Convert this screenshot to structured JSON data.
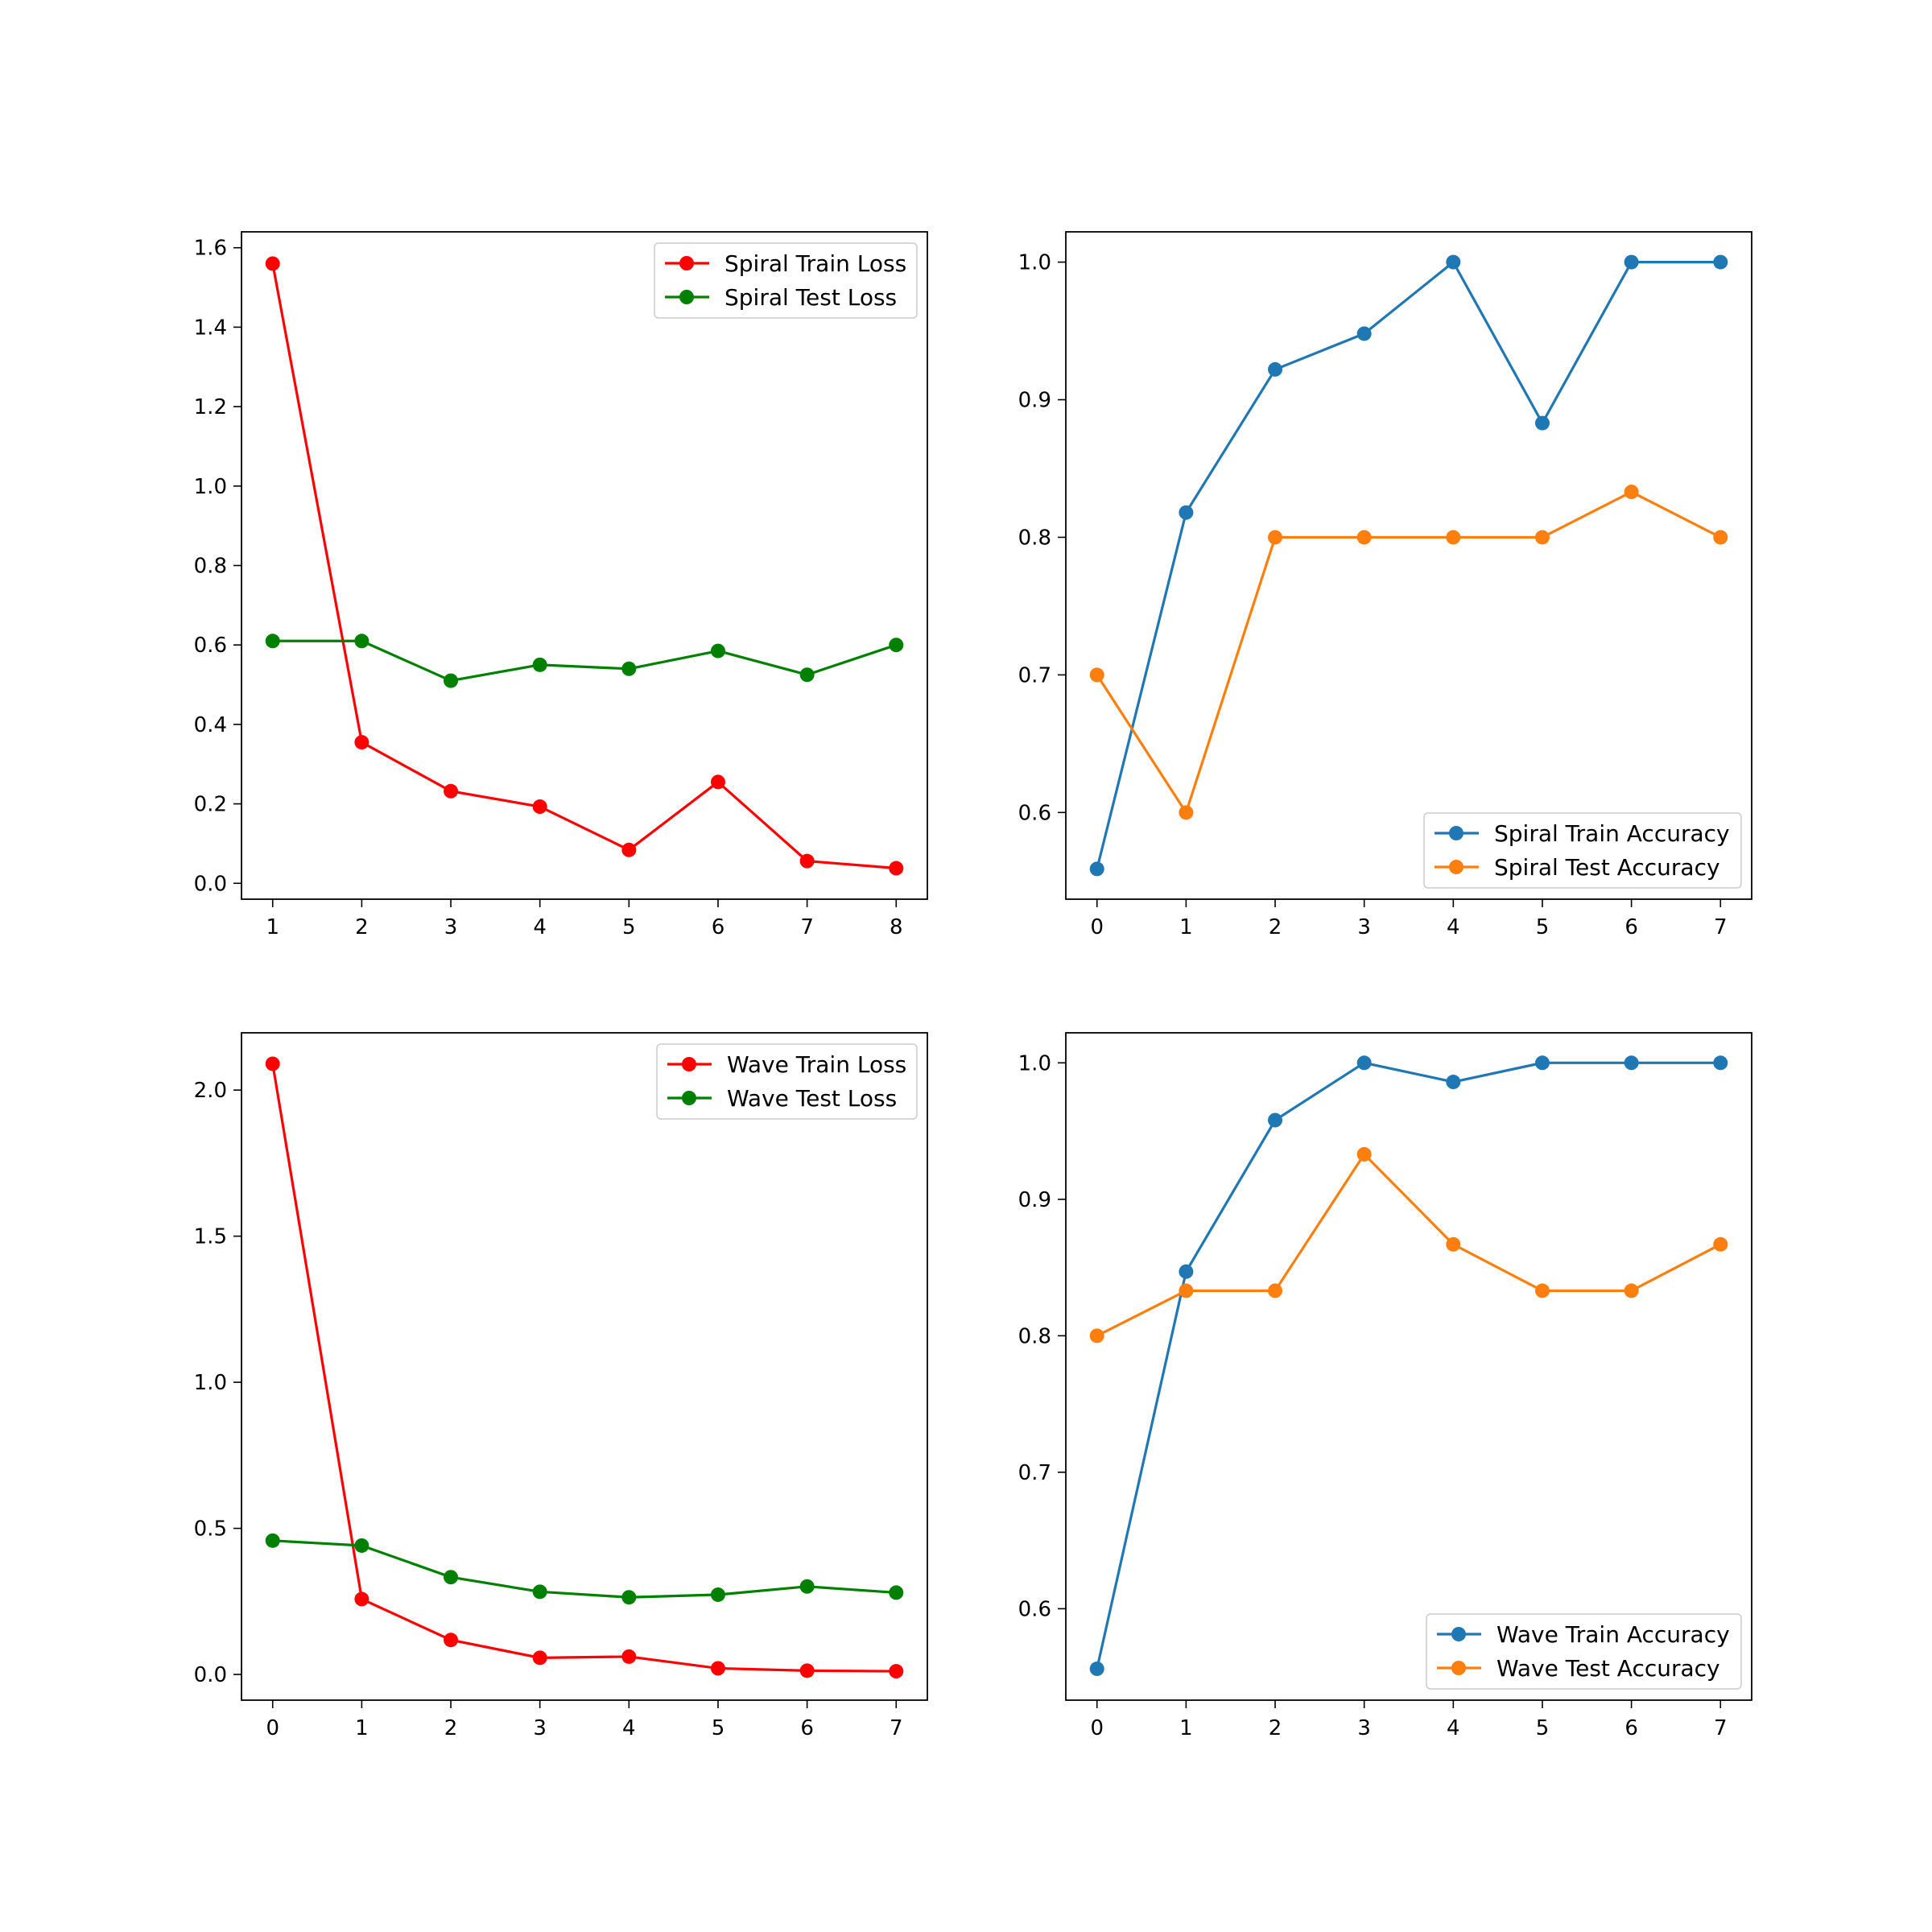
{
  "chart_data": [
    {
      "type": "line",
      "title": "",
      "xlabel": "",
      "ylabel": "",
      "xlim": [
        0.65,
        8.35
      ],
      "ylim": [
        -0.04,
        1.64
      ],
      "xticks": [
        1,
        2,
        3,
        4,
        5,
        6,
        7,
        8
      ],
      "yticks": [
        0.0,
        0.2,
        0.4,
        0.6,
        0.8,
        1.0,
        1.2,
        1.4,
        1.6
      ],
      "ytick_decimals": 1,
      "grid": false,
      "legend_position": "upper right",
      "series": [
        {
          "name": "Spiral Train Loss",
          "color": "#ff0000",
          "marker": "circle",
          "x": [
            1,
            2,
            3,
            4,
            5,
            6,
            7,
            8
          ],
          "y": [
            1.56,
            0.355,
            0.232,
            0.193,
            0.084,
            0.255,
            0.056,
            0.038
          ]
        },
        {
          "name": "Spiral Test Loss",
          "color": "#008000",
          "marker": "circle",
          "x": [
            1,
            2,
            3,
            4,
            5,
            6,
            7,
            8
          ],
          "y": [
            0.61,
            0.61,
            0.51,
            0.55,
            0.54,
            0.585,
            0.525,
            0.6
          ]
        }
      ]
    },
    {
      "type": "line",
      "title": "",
      "xlabel": "",
      "ylabel": "",
      "xlim": [
        -0.35,
        7.35
      ],
      "ylim": [
        0.537,
        1.022
      ],
      "xticks": [
        0,
        1,
        2,
        3,
        4,
        5,
        6,
        7
      ],
      "yticks": [
        0.6,
        0.7,
        0.8,
        0.9,
        1.0
      ],
      "ytick_decimals": 1,
      "grid": false,
      "legend_position": "lower right",
      "series": [
        {
          "name": "Spiral Train Accuracy",
          "color": "#1f77b4",
          "marker": "circle",
          "x": [
            0,
            1,
            2,
            3,
            4,
            5,
            6,
            7
          ],
          "y": [
            0.559,
            0.818,
            0.922,
            0.948,
            1.0,
            0.883,
            1.0,
            1.0
          ]
        },
        {
          "name": "Spiral Test Accuracy",
          "color": "#ff7f0e",
          "marker": "circle",
          "x": [
            0,
            1,
            2,
            3,
            4,
            5,
            6,
            7
          ],
          "y": [
            0.7,
            0.6,
            0.8,
            0.8,
            0.8,
            0.8,
            0.833,
            0.8
          ]
        }
      ]
    },
    {
      "type": "line",
      "title": "",
      "xlabel": "",
      "ylabel": "",
      "xlim": [
        -0.35,
        7.35
      ],
      "ylim": [
        -0.088,
        2.196
      ],
      "xticks": [
        0,
        1,
        2,
        3,
        4,
        5,
        6,
        7
      ],
      "yticks": [
        0.0,
        0.5,
        1.0,
        1.5,
        2.0
      ],
      "ytick_decimals": 1,
      "grid": false,
      "legend_position": "upper right",
      "series": [
        {
          "name": "Wave Train Loss",
          "color": "#ff0000",
          "marker": "circle",
          "x": [
            0,
            1,
            2,
            3,
            4,
            5,
            6,
            7
          ],
          "y": [
            2.09,
            0.258,
            0.118,
            0.057,
            0.061,
            0.021,
            0.013,
            0.011
          ]
        },
        {
          "name": "Wave Test Loss",
          "color": "#008000",
          "marker": "circle",
          "x": [
            0,
            1,
            2,
            3,
            4,
            5,
            6,
            7
          ],
          "y": [
            0.458,
            0.441,
            0.333,
            0.283,
            0.264,
            0.273,
            0.301,
            0.28
          ]
        }
      ]
    },
    {
      "type": "line",
      "title": "",
      "xlabel": "",
      "ylabel": "",
      "xlim": [
        -0.35,
        7.35
      ],
      "ylim": [
        0.533,
        1.022
      ],
      "xticks": [
        0,
        1,
        2,
        3,
        4,
        5,
        6,
        7
      ],
      "yticks": [
        0.6,
        0.7,
        0.8,
        0.9,
        1.0
      ],
      "ytick_decimals": 1,
      "grid": false,
      "legend_position": "lower right",
      "series": [
        {
          "name": "Wave Train Accuracy",
          "color": "#1f77b4",
          "marker": "circle",
          "x": [
            0,
            1,
            2,
            3,
            4,
            5,
            6,
            7
          ],
          "y": [
            0.556,
            0.847,
            0.958,
            1.0,
            0.986,
            1.0,
            1.0,
            1.0
          ]
        },
        {
          "name": "Wave Test Accuracy",
          "color": "#ff7f0e",
          "marker": "circle",
          "x": [
            0,
            1,
            2,
            3,
            4,
            5,
            6,
            7
          ],
          "y": [
            0.8,
            0.833,
            0.833,
            0.933,
            0.867,
            0.833,
            0.833,
            0.867
          ]
        }
      ]
    }
  ]
}
